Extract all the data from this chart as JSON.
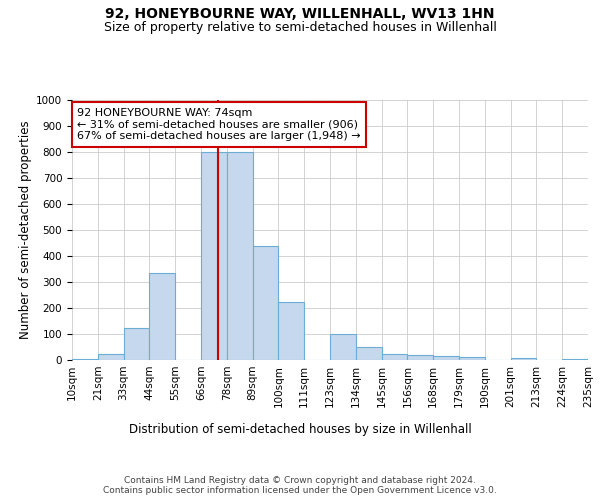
{
  "title": "92, HONEYBOURNE WAY, WILLENHALL, WV13 1HN",
  "subtitle": "Size of property relative to semi-detached houses in Willenhall",
  "xlabel": "Distribution of semi-detached houses by size in Willenhall",
  "ylabel": "Number of semi-detached properties",
  "bin_labels": [
    "10sqm",
    "21sqm",
    "33sqm",
    "44sqm",
    "55sqm",
    "66sqm",
    "78sqm",
    "89sqm",
    "100sqm",
    "111sqm",
    "123sqm",
    "134sqm",
    "145sqm",
    "156sqm",
    "168sqm",
    "179sqm",
    "190sqm",
    "201sqm",
    "213sqm",
    "224sqm",
    "235sqm"
  ],
  "bar_values": [
    5,
    25,
    125,
    335,
    0,
    800,
    800,
    440,
    225,
    0,
    100,
    50,
    25,
    20,
    17,
    10,
    0,
    7,
    0,
    5
  ],
  "bar_color": "#c5d8ed",
  "bar_edgecolor": "#6aaed6",
  "vline_color": "#cc0000",
  "vline_x": 5.667,
  "annotation_text": "92 HONEYBOURNE WAY: 74sqm\n← 31% of semi-detached houses are smaller (906)\n67% of semi-detached houses are larger (1,948) →",
  "annotation_box_color": "#ffffff",
  "annotation_box_edgecolor": "#cc0000",
  "ylim": [
    0,
    1000
  ],
  "yticks": [
    0,
    100,
    200,
    300,
    400,
    500,
    600,
    700,
    800,
    900,
    1000
  ],
  "footer": "Contains HM Land Registry data © Crown copyright and database right 2024.\nContains public sector information licensed under the Open Government Licence v3.0.",
  "background_color": "#ffffff",
  "grid_color": "#cccccc",
  "title_fontsize": 10,
  "subtitle_fontsize": 9,
  "axis_label_fontsize": 8.5,
  "tick_fontsize": 7.5,
  "annotation_fontsize": 8,
  "footer_fontsize": 6.5
}
